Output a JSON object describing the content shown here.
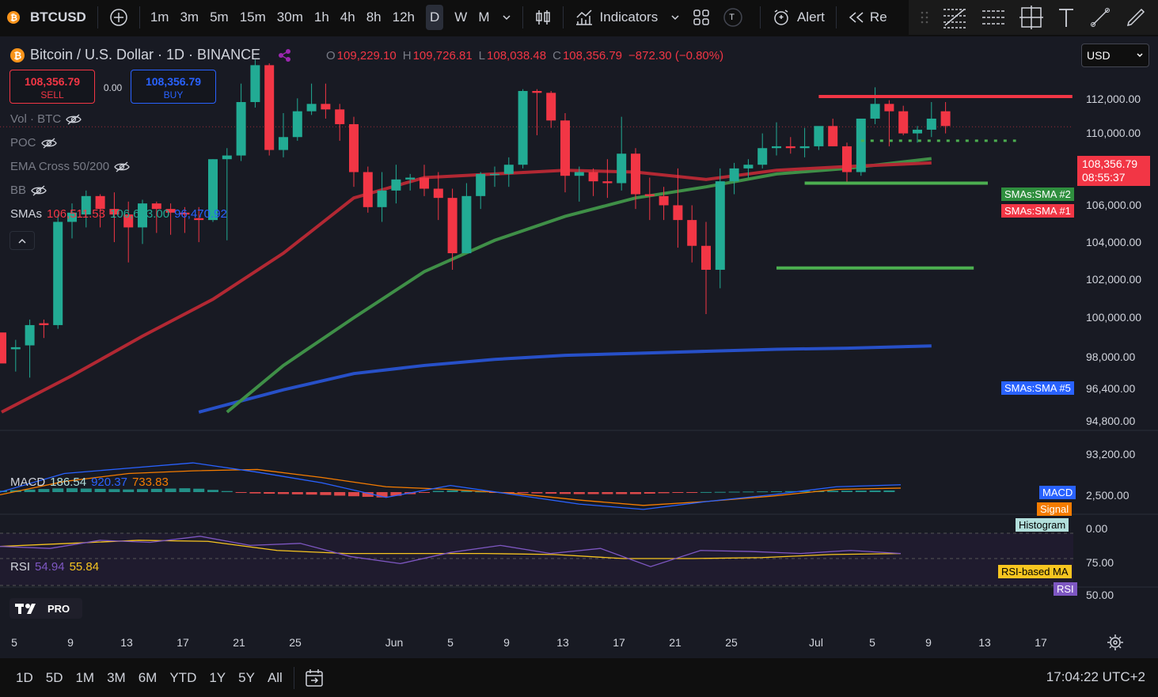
{
  "toolbar": {
    "symbol": "BTCUSD",
    "intervals": [
      "1m",
      "3m",
      "5m",
      "15m",
      "30m",
      "1h",
      "4h",
      "8h",
      "12h",
      "D",
      "W",
      "M"
    ],
    "active_interval": "D",
    "indicators_label": "Indicators",
    "template_letter": "T",
    "alert_label": "Alert",
    "replay_label": "Re"
  },
  "legend": {
    "title": "Bitcoin / U.S. Dollar · 1D · BINANCE",
    "o_label": "O",
    "o_value": "109,229.10",
    "h_label": "H",
    "h_value": "109,726.81",
    "l_label": "L",
    "l_value": "108,038.48",
    "c_label": "C",
    "c_value": "108,356.79",
    "change": "−872.30 (−0.80%)",
    "vol": "Vol · BTC",
    "poc": "POC",
    "ema": "EMA Cross 50/200",
    "bb": "BB",
    "smas_label": "SMAs",
    "sma1": "106,511.53",
    "sma2": "106,633.00",
    "sma3": "96,470.92"
  },
  "trade": {
    "sell_price": "108,356.79",
    "sell_label": "SELL",
    "spread": "0.00",
    "buy_price": "108,356.79",
    "buy_label": "BUY"
  },
  "currency": "USD",
  "price_axis": [
    "112,000.00",
    "110,000.00",
    "106,000.00",
    "104,000.00",
    "102,000.00",
    "100,000.00",
    "98,000.00",
    "96,400.00",
    "94,800.00",
    "93,200.00"
  ],
  "price_tag": {
    "price": "108,356.79",
    "countdown": "08:55:37"
  },
  "sma_tags": {
    "sma2": "SMAs:SMA #2",
    "sma1": "SMAs:SMA #1",
    "sma5": "SMAs:SMA #5"
  },
  "macd": {
    "label": "MACD",
    "v1": "186.54",
    "v2": "920.37",
    "v3": "733.83",
    "tag_macd": "MACD",
    "tag_signal": "Signal",
    "tag_hist": "Histogram",
    "axis": [
      "2,500.00",
      "0.00"
    ]
  },
  "rsi": {
    "label": "RSI",
    "v1": "54.94",
    "v2": "55.84",
    "tag_ma": "RSI-based MA",
    "tag_rsi": "RSI",
    "axis": [
      "75.00",
      "50.00"
    ]
  },
  "date_axis": [
    "5",
    "9",
    "13",
    "17",
    "21",
    "25",
    "Jun",
    "5",
    "9",
    "13",
    "17",
    "21",
    "25",
    "Jul",
    "5",
    "9",
    "13",
    "17"
  ],
  "logo_text": "PRO",
  "ranges": [
    "1D",
    "5D",
    "1M",
    "3M",
    "6M",
    "YTD",
    "1Y",
    "5Y",
    "All"
  ],
  "clock": "17:04:22 UTC+2",
  "colors": {
    "up": "#22ab94",
    "down": "#f23645",
    "sma1": "#b22833",
    "sma2": "#3f8f47",
    "sma5": "#2750c8",
    "macd": "#2962ff",
    "signal": "#f57c00",
    "rsi": "#7e57c2",
    "rsi_ma": "#f7c520"
  },
  "chart_data": {
    "type": "candlestick",
    "ohlc": [
      [
        null,
        null,
        null,
        null
      ],
      [
        96300,
        96800,
        95200,
        96400
      ],
      [
        96500,
        97900,
        94900,
        97600
      ],
      [
        97700,
        97900,
        96900,
        97600
      ],
      [
        97600,
        103600,
        97400,
        103200
      ],
      [
        103200,
        104200,
        102300,
        103700
      ],
      [
        103600,
        104900,
        102900,
        104600
      ],
      [
        104600,
        104700,
        102900,
        103900
      ],
      [
        103900,
        104800,
        102100,
        103600
      ],
      [
        103600,
        104300,
        101000,
        102900
      ],
      [
        102900,
        104400,
        102000,
        104200
      ],
      [
        104200,
        104300,
        102600,
        103900
      ],
      [
        103900,
        104200,
        102500,
        103700
      ],
      [
        103700,
        104000,
        102600,
        103600
      ],
      [
        103400,
        104000,
        102100,
        103300
      ],
      [
        103300,
        106600,
        103200,
        106600
      ],
      [
        106600,
        107200,
        102200,
        106800
      ],
      [
        106800,
        110700,
        106500,
        109700
      ],
      [
        109700,
        112000,
        109400,
        111700
      ],
      [
        111700,
        111800,
        106800,
        107100
      ],
      [
        107100,
        109100,
        106700,
        107800
      ],
      [
        107800,
        109900,
        107600,
        109200
      ],
      [
        109200,
        110700,
        109000,
        109600
      ],
      [
        109600,
        110700,
        108800,
        109300
      ],
      [
        109300,
        109600,
        107600,
        108500
      ],
      [
        108500,
        108900,
        105100,
        105900
      ],
      [
        105900,
        106200,
        103700,
        104000
      ],
      [
        104000,
        105900,
        103200,
        104900
      ],
      [
        104900,
        106300,
        104200,
        105500
      ],
      [
        105500,
        105800,
        104900,
        105600
      ],
      [
        105600,
        106300,
        104600,
        105000
      ],
      [
        105000,
        105900,
        103300,
        104500
      ],
      [
        104500,
        105000,
        100600,
        101500
      ],
      [
        101500,
        105300,
        101500,
        104600
      ],
      [
        104600,
        105900,
        103900,
        105800
      ],
      [
        105800,
        106200,
        105100,
        105800
      ],
      [
        105800,
        106700,
        105100,
        106300
      ],
      [
        106300,
        110400,
        106100,
        110300
      ],
      [
        110300,
        110400,
        107900,
        110200
      ],
      [
        110200,
        110300,
        108300,
        108700
      ],
      [
        108700,
        109100,
        104800,
        105700
      ],
      [
        105700,
        106200,
        104300,
        105900
      ],
      [
        105900,
        106100,
        104600,
        105400
      ],
      [
        105400,
        106600,
        104500,
        105300
      ],
      [
        105300,
        108900,
        104900,
        106900
      ],
      [
        106900,
        107200,
        103900,
        104700
      ],
      [
        104700,
        105600,
        103300,
        104600
      ],
      [
        104600,
        105100,
        103300,
        104100
      ],
      [
        104100,
        106100,
        101800,
        103300
      ],
      [
        103300,
        104100,
        101000,
        101900
      ],
      [
        101900,
        103200,
        98200,
        100600
      ],
      [
        100600,
        106100,
        99600,
        105400
      ],
      [
        105400,
        106400,
        104700,
        106100
      ],
      [
        106100,
        106600,
        105600,
        106300
      ],
      [
        106300,
        108000,
        106100,
        107200
      ],
      [
        107200,
        108600,
        106800,
        107300
      ],
      [
        107300,
        107800,
        106900,
        107200
      ],
      [
        107200,
        108300,
        106700,
        107300
      ],
      [
        107300,
        108300,
        107100,
        108400
      ],
      [
        108400,
        108800,
        107300,
        107300
      ],
      [
        107300,
        107500,
        105300,
        105900
      ],
      [
        105900,
        108800,
        105700,
        108800
      ],
      [
        108800,
        110500,
        108500,
        109600
      ],
      [
        109600,
        109800,
        107300,
        109200
      ],
      [
        109200,
        109500,
        107900,
        108000
      ],
      [
        108000,
        108400,
        107500,
        108200
      ],
      [
        108200,
        109700,
        107800,
        108800
      ],
      [
        109200,
        109700,
        108000,
        108400
      ]
    ],
    "sma1": [
      [
        0,
        93200
      ],
      [
        5,
        95000
      ],
      [
        10,
        97000
      ],
      [
        15,
        99000
      ],
      [
        20,
        101500
      ],
      [
        25,
        104500
      ],
      [
        30,
        105600
      ],
      [
        35,
        105800
      ],
      [
        40,
        106000
      ],
      [
        45,
        105900
      ],
      [
        50,
        105500
      ],
      [
        55,
        106000
      ],
      [
        60,
        106200
      ],
      [
        66,
        106400
      ]
    ],
    "sma2": [
      [
        16,
        93200
      ],
      [
        20,
        95500
      ],
      [
        25,
        98000
      ],
      [
        30,
        100500
      ],
      [
        35,
        102200
      ],
      [
        40,
        103500
      ],
      [
        45,
        104500
      ],
      [
        50,
        105100
      ],
      [
        55,
        105800
      ],
      [
        60,
        106100
      ],
      [
        66,
        106630
      ]
    ],
    "sma5": [
      [
        14,
        93200
      ],
      [
        20,
        94300
      ],
      [
        25,
        95100
      ],
      [
        30,
        95500
      ],
      [
        35,
        95800
      ],
      [
        40,
        96000
      ],
      [
        45,
        96100
      ],
      [
        50,
        96200
      ],
      [
        55,
        96300
      ],
      [
        60,
        96350
      ],
      [
        66,
        96470
      ]
    ],
    "hlines": [
      {
        "price": 110000,
        "x_from": 58,
        "x_to": 76,
        "color": "#f23645",
        "style": "solid"
      },
      {
        "price": 105300,
        "x_from": 57,
        "x_to": 70,
        "color": "#4caf50",
        "style": "solid"
      },
      {
        "price": 100700,
        "x_from": 55,
        "x_to": 69,
        "color": "#4caf50",
        "style": "solid"
      },
      {
        "price": 107600,
        "x_from": 61,
        "x_to": 72,
        "color": "#4caf50",
        "style": "dotted"
      }
    ],
    "macd_line": [
      [
        "5",
        0
      ],
      [
        "13",
        1400
      ],
      [
        "17",
        1800
      ],
      [
        "21",
        2200
      ],
      [
        "25",
        1500
      ],
      [
        "Jun",
        700
      ],
      [
        "5",
        -400
      ],
      [
        "9",
        500
      ],
      [
        "13",
        -200
      ],
      [
        "17",
        -900
      ],
      [
        "21",
        -1300
      ],
      [
        "25",
        -700
      ],
      [
        "Jul",
        -200
      ],
      [
        "5",
        400
      ],
      [
        "7",
        550
      ]
    ],
    "signal_line": [
      [
        "5",
        -200
      ],
      [
        "13",
        800
      ],
      [
        "17",
        1400
      ],
      [
        "21",
        1600
      ],
      [
        "25",
        1700
      ],
      [
        "Jun",
        1100
      ],
      [
        "5",
        400
      ],
      [
        "9",
        200
      ],
      [
        "13",
        -100
      ],
      [
        "17",
        -600
      ],
      [
        "21",
        -1000
      ],
      [
        "25",
        -700
      ],
      [
        "Jul",
        -300
      ],
      [
        "5",
        200
      ],
      [
        "7",
        300
      ]
    ],
    "rsi_line": [
      [
        "5",
        62
      ],
      [
        "9",
        60
      ],
      [
        "13",
        68
      ],
      [
        "17",
        66
      ],
      [
        "21",
        72
      ],
      [
        "23",
        63
      ],
      [
        "25",
        65
      ],
      [
        "Jun",
        52
      ],
      [
        "3",
        45
      ],
      [
        "5",
        56
      ],
      [
        "9",
        63
      ],
      [
        "13",
        55
      ],
      [
        "17",
        60
      ],
      [
        "21",
        42
      ],
      [
        "23",
        58
      ],
      [
        "25",
        57
      ],
      [
        "Jul",
        55
      ],
      [
        "5",
        58
      ],
      [
        "7",
        55
      ]
    ],
    "rsi_ma_line": [
      [
        "5",
        62
      ],
      [
        "13",
        65
      ],
      [
        "21",
        68
      ],
      [
        "25",
        67
      ],
      [
        "Jun",
        58
      ],
      [
        "5",
        55
      ],
      [
        "9",
        55
      ],
      [
        "13",
        55
      ],
      [
        "17",
        54
      ],
      [
        "21",
        50
      ],
      [
        "25",
        50
      ],
      [
        "Jul",
        51
      ],
      [
        "5",
        54
      ],
      [
        "7",
        55
      ]
    ]
  }
}
